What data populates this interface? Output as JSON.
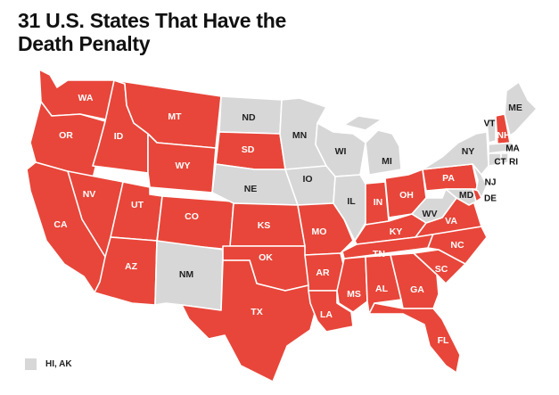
{
  "title": "31 U.S. States That Have the Death Penalty",
  "colors": {
    "death_penalty": "#e8463a",
    "no_death_penalty": "#d7d7d7",
    "border": "#ffffff",
    "label_on_red": "#ffffff",
    "label_on_grey": "#222222"
  },
  "states": [
    {
      "abbr": "WA",
      "death_penalty": true
    },
    {
      "abbr": "OR",
      "death_penalty": true
    },
    {
      "abbr": "CA",
      "death_penalty": true
    },
    {
      "abbr": "ID",
      "death_penalty": true
    },
    {
      "abbr": "NV",
      "death_penalty": true
    },
    {
      "abbr": "MT",
      "death_penalty": true
    },
    {
      "abbr": "WY",
      "death_penalty": true
    },
    {
      "abbr": "UT",
      "death_penalty": true
    },
    {
      "abbr": "AZ",
      "death_penalty": true
    },
    {
      "abbr": "CO",
      "death_penalty": true
    },
    {
      "abbr": "NM",
      "death_penalty": false
    },
    {
      "abbr": "ND",
      "death_penalty": false
    },
    {
      "abbr": "SD",
      "death_penalty": true
    },
    {
      "abbr": "NE",
      "death_penalty": false
    },
    {
      "abbr": "KS",
      "death_penalty": true
    },
    {
      "abbr": "OK",
      "death_penalty": true
    },
    {
      "abbr": "TX",
      "death_penalty": true
    },
    {
      "abbr": "MN",
      "death_penalty": false
    },
    {
      "abbr": "IO",
      "death_penalty": false
    },
    {
      "abbr": "MO",
      "death_penalty": true
    },
    {
      "abbr": "AR",
      "death_penalty": true
    },
    {
      "abbr": "LA",
      "death_penalty": true
    },
    {
      "abbr": "WI",
      "death_penalty": false
    },
    {
      "abbr": "IL",
      "death_penalty": false
    },
    {
      "abbr": "MI",
      "death_penalty": false
    },
    {
      "abbr": "IN",
      "death_penalty": true
    },
    {
      "abbr": "OH",
      "death_penalty": true
    },
    {
      "abbr": "KY",
      "death_penalty": true
    },
    {
      "abbr": "TN",
      "death_penalty": true
    },
    {
      "abbr": "MS",
      "death_penalty": true
    },
    {
      "abbr": "AL",
      "death_penalty": true
    },
    {
      "abbr": "GA",
      "death_penalty": true
    },
    {
      "abbr": "FL",
      "death_penalty": true
    },
    {
      "abbr": "SC",
      "death_penalty": true
    },
    {
      "abbr": "NC",
      "death_penalty": true
    },
    {
      "abbr": "VA",
      "death_penalty": true
    },
    {
      "abbr": "WV",
      "death_penalty": false
    },
    {
      "abbr": "PA",
      "death_penalty": true
    },
    {
      "abbr": "NY",
      "death_penalty": false
    },
    {
      "abbr": "NJ",
      "death_penalty": false
    },
    {
      "abbr": "DE",
      "death_penalty": true
    },
    {
      "abbr": "MD",
      "death_penalty": false
    },
    {
      "abbr": "VT",
      "death_penalty": false
    },
    {
      "abbr": "NH",
      "death_penalty": true
    },
    {
      "abbr": "ME",
      "death_penalty": false
    },
    {
      "abbr": "MA",
      "death_penalty": false
    },
    {
      "abbr": "CT",
      "death_penalty": false
    },
    {
      "abbr": "RI",
      "death_penalty": false
    }
  ],
  "legend": {
    "label": "HI, AK",
    "swatch": "no_death_penalty"
  }
}
